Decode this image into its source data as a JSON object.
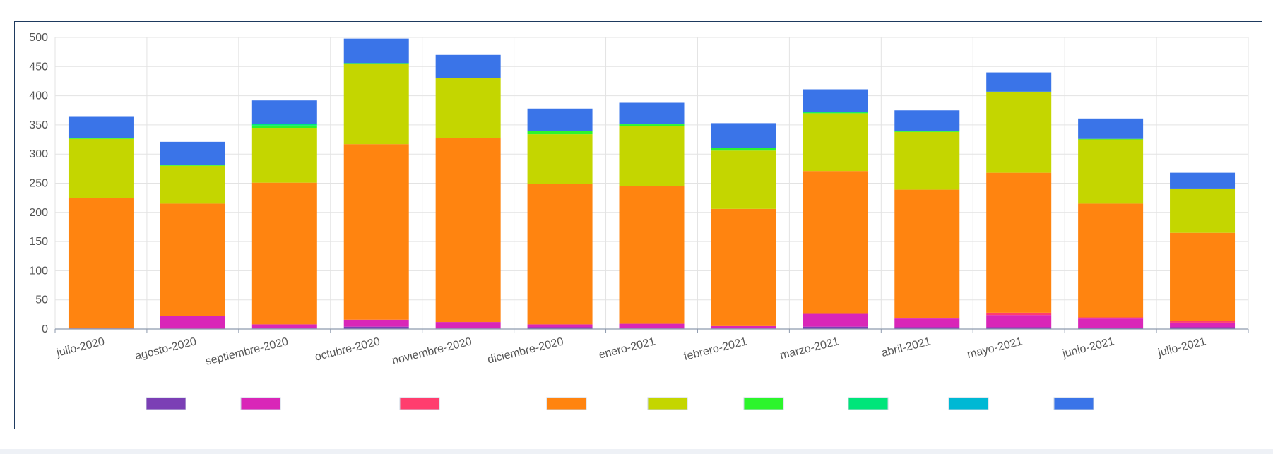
{
  "chart_data": {
    "type": "bar",
    "stacked": true,
    "title": "",
    "xlabel": "",
    "ylabel": "",
    "ylim": [
      0,
      500
    ],
    "yticks": [
      0,
      50,
      100,
      150,
      200,
      250,
      300,
      350,
      400,
      450,
      500
    ],
    "grid": true,
    "legend_position": "bottom",
    "categories": [
      "julio-2020",
      "agosto-2020",
      "septiembre-2020",
      "octubre-2020",
      "noviembre-2020",
      "diciembre-2020",
      "enero-2021",
      "febrero-2021",
      "marzo-2021",
      "abril-2021",
      "mayo-2021",
      "junio-2021",
      "julio-2021"
    ],
    "series": [
      {
        "color": "#7b3fb5",
        "values": [
          1,
          0,
          1,
          4,
          1,
          3,
          1,
          1,
          4,
          3,
          3,
          2,
          3
        ]
      },
      {
        "color": "#d926b8",
        "values": [
          0,
          22,
          7,
          12,
          11,
          5,
          8,
          4,
          22,
          15,
          21,
          16,
          8
        ]
      },
      {
        "color": "#ff3d6e",
        "values": [
          0,
          0,
          0,
          0,
          0,
          0,
          0,
          0,
          0,
          1,
          4,
          2,
          3
        ]
      },
      {
        "color": "#ff8410",
        "values": [
          224,
          193,
          243,
          301,
          316,
          241,
          236,
          201,
          245,
          220,
          240,
          195,
          151
        ]
      },
      {
        "color": "#c4d600",
        "values": [
          101,
          65,
          94,
          138,
          102,
          85,
          103,
          100,
          99,
          99,
          138,
          110,
          75
        ]
      },
      {
        "color": "#2cf52c",
        "values": [
          2,
          1,
          4,
          1,
          1,
          5,
          3,
          4,
          1,
          1,
          1,
          1,
          1
        ]
      },
      {
        "color": "#00e57a",
        "values": [
          0,
          0,
          3,
          0,
          0,
          1,
          1,
          1,
          1,
          0,
          0,
          0,
          0
        ]
      },
      {
        "color": "#00b8d4",
        "values": [
          0,
          0,
          0,
          0,
          0,
          0,
          0,
          0,
          0,
          0,
          0,
          0,
          0
        ]
      },
      {
        "color": "#3a74e8",
        "values": [
          37,
          40,
          40,
          42,
          39,
          38,
          36,
          42,
          39,
          36,
          33,
          35,
          27
        ]
      }
    ]
  }
}
